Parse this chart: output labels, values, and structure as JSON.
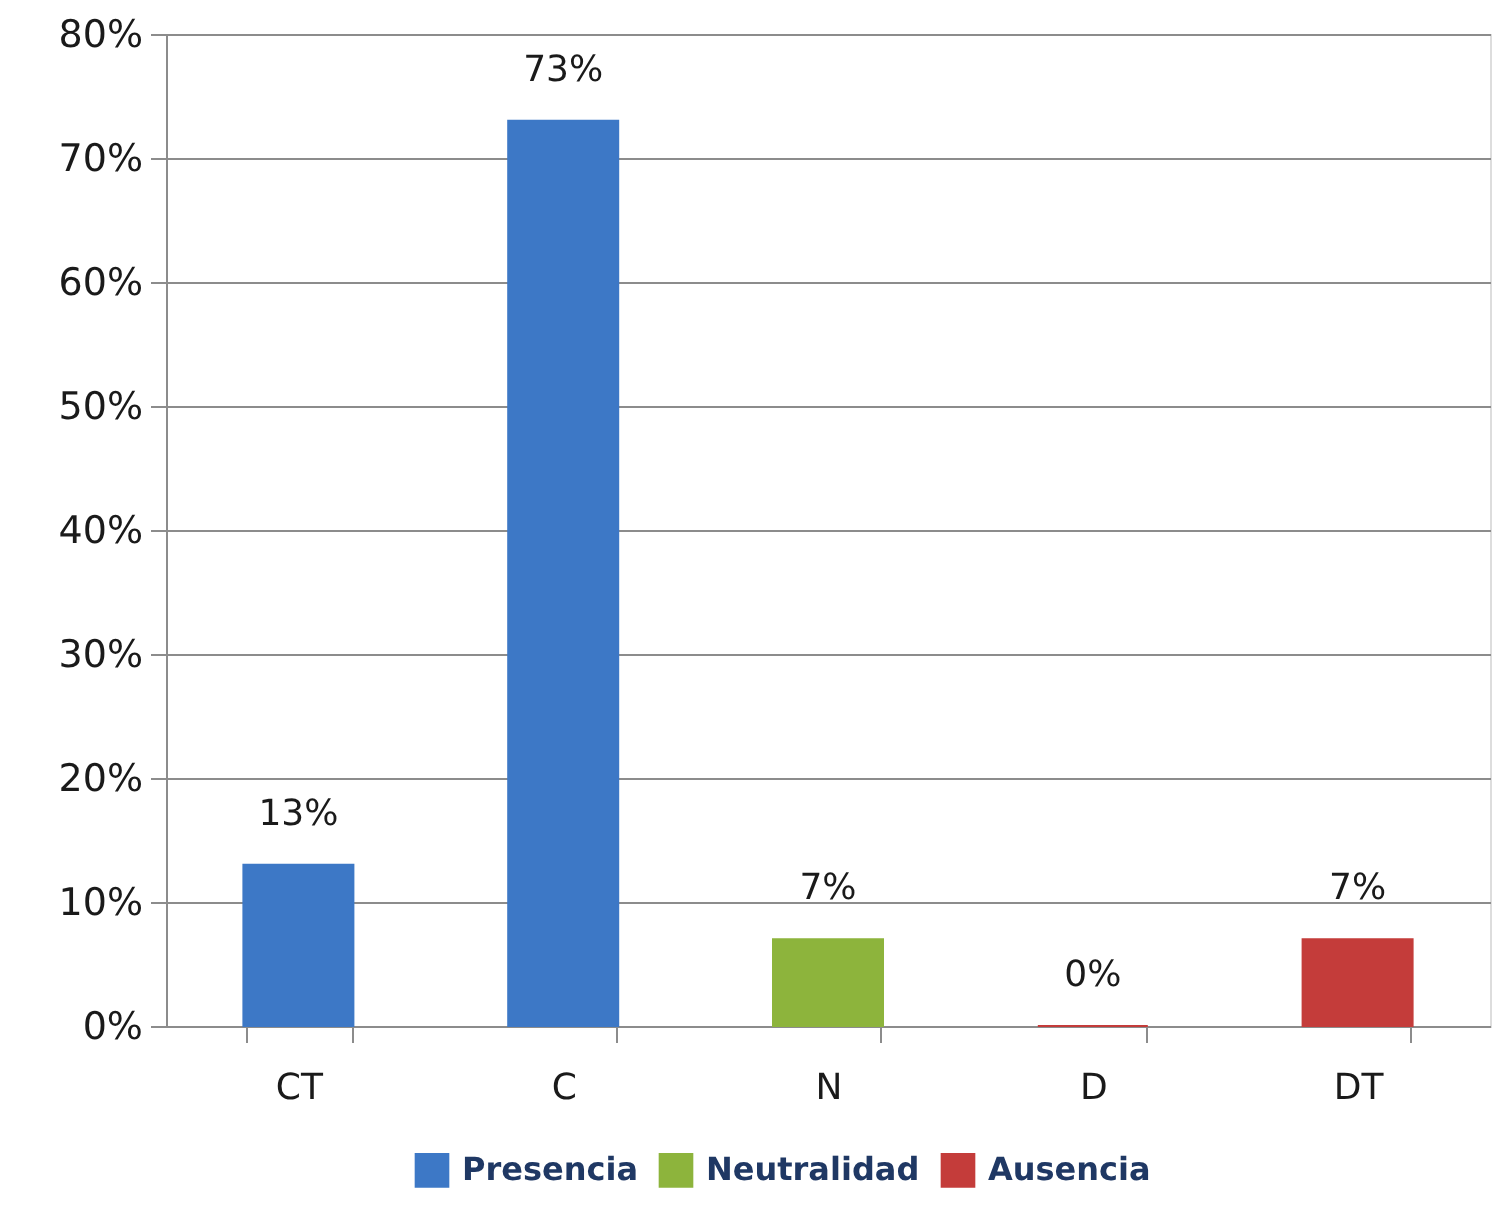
{
  "chart_data": {
    "type": "bar",
    "categories": [
      "CT",
      "C",
      "N",
      "D",
      "DT"
    ],
    "series": [
      {
        "name": "Presencia",
        "color": "#3d78c6",
        "values": [
          13,
          73,
          null,
          null,
          null
        ],
        "value_labels": [
          "13%",
          "73%",
          null,
          null,
          null
        ]
      },
      {
        "name": "Neutralidad",
        "color": "#8db43c",
        "values": [
          null,
          null,
          7,
          null,
          null
        ],
        "value_labels": [
          null,
          null,
          "7%",
          null,
          null
        ]
      },
      {
        "name": "Ausencia",
        "color": "#c43c3a",
        "values": [
          null,
          null,
          null,
          0,
          7
        ],
        "value_labels": [
          null,
          null,
          null,
          "0%",
          "7%"
        ]
      }
    ],
    "ylim": [
      0,
      80
    ],
    "yticks": [
      {
        "value": 0,
        "label": "0%"
      },
      {
        "value": 10,
        "label": "10%"
      },
      {
        "value": 20,
        "label": "20%"
      },
      {
        "value": 30,
        "label": "30%"
      },
      {
        "value": 40,
        "label": "40%"
      },
      {
        "value": 50,
        "label": "50%"
      },
      {
        "value": 60,
        "label": "60%"
      },
      {
        "value": 70,
        "label": "70%"
      },
      {
        "value": 80,
        "label": "80%"
      }
    ],
    "grid": "y",
    "legend": "bottom"
  }
}
